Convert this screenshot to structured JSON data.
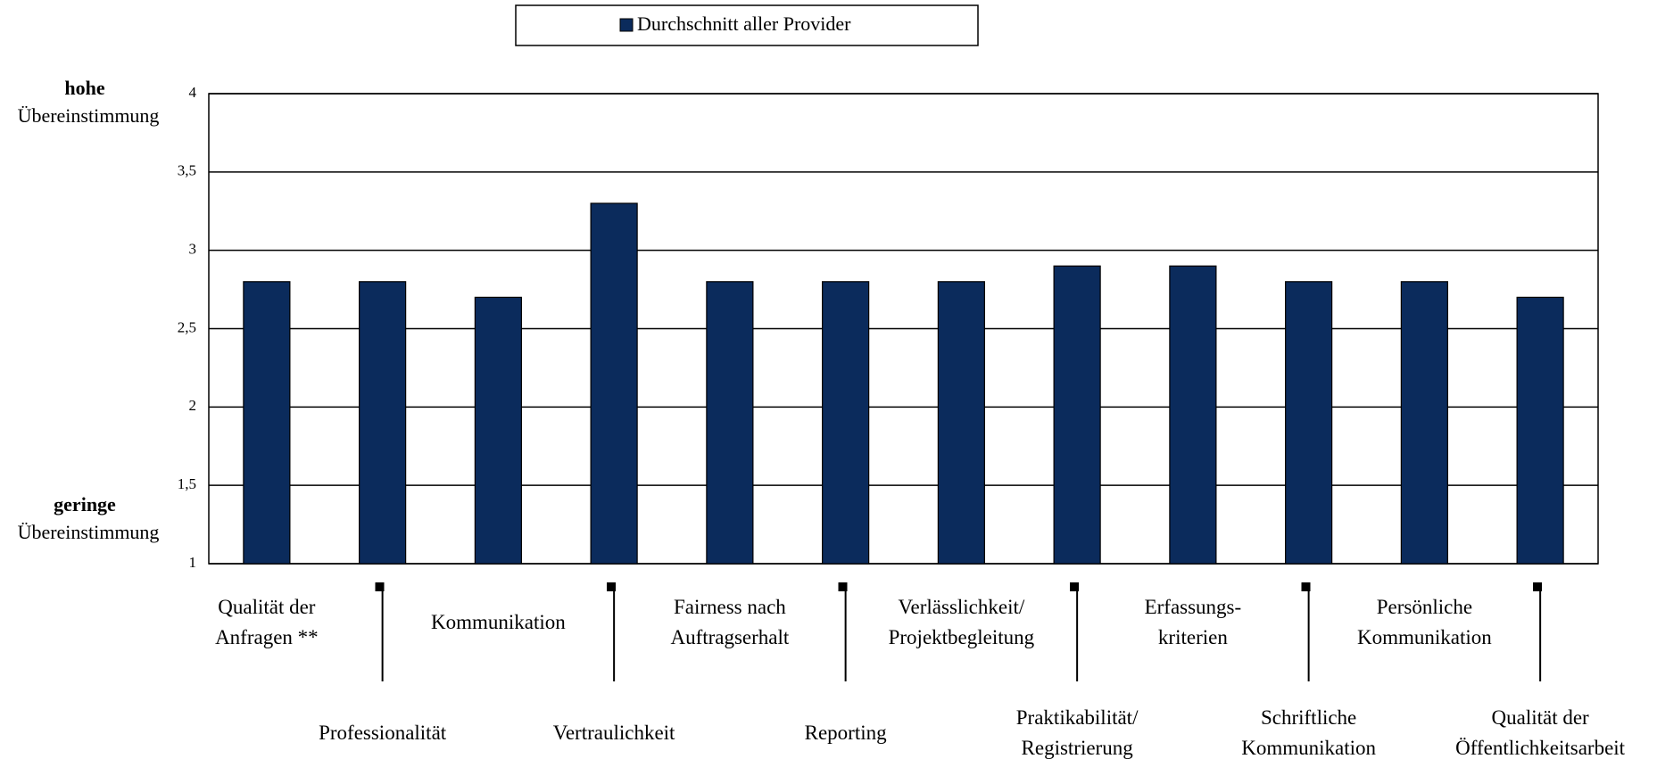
{
  "chart_data": {
    "type": "bar",
    "legend_title": "Durchschnitt aller Provider",
    "annotations": {
      "top": [
        "hohe",
        "Übereinstimmung"
      ],
      "bottom": [
        "geringe",
        "Übereinstimmung"
      ]
    },
    "categories": [
      "Qualität der\nAnfragen **",
      "Professionalität",
      "Kommunikation",
      "Vertraulichkeit",
      "Fairness nach\nAuftragserhalt",
      "Reporting",
      "Verlässlichkeit/\nProjektbegleitung",
      "Praktikabilität/\nRegistrierung",
      "Erfassungs-\nkriterien",
      "Schriftliche\nKommunikation",
      "Persönliche\nKommunikation",
      "Qualität der\nÖffentlichkeitsarbeit"
    ],
    "series": [
      {
        "name": "Durchschnitt aller Provider",
        "color": "#0b2b5c",
        "values": [
          2.8,
          2.8,
          2.7,
          3.3,
          2.8,
          2.8,
          2.8,
          2.9,
          2.9,
          2.8,
          2.8,
          2.7
        ]
      }
    ],
    "ylim": [
      1,
      4
    ],
    "yticks": [
      1,
      {
        "value": 1.5,
        "label": "1,5"
      },
      2,
      {
        "value": 2.5,
        "label": "2,5"
      },
      3,
      {
        "value": 3.5,
        "label": "3,5"
      },
      4
    ],
    "grid": true
  }
}
